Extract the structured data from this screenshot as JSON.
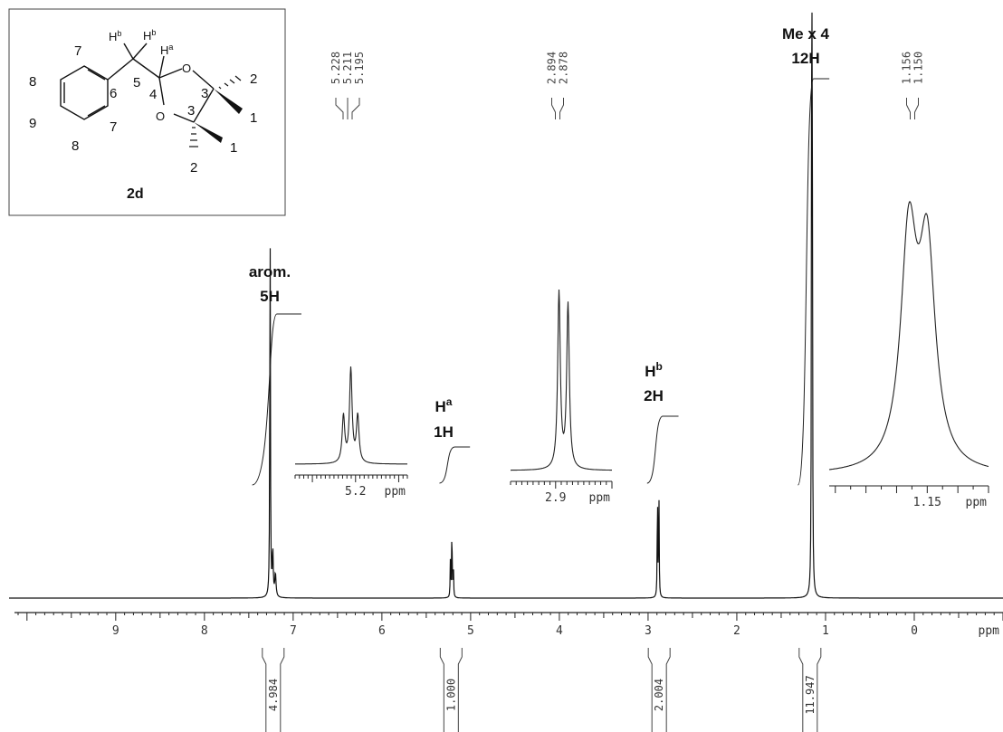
{
  "chart_data": {
    "type": "line",
    "title": "",
    "xlabel": "ppm",
    "x_axis_reversed": true,
    "xlim": [
      10.1,
      -1.0
    ],
    "grid": false,
    "x_ticks": [
      "9",
      "8",
      "7",
      "6",
      "5",
      "4",
      "3",
      "2",
      "1",
      "0"
    ],
    "peaks": [
      {
        "name": "arom.",
        "shift_ppm": 7.26,
        "intensity": 0.74
      },
      {
        "name": "Ha",
        "shift_ppm": 5.211,
        "intensity": 0.14,
        "multiplicity": "t",
        "lines_ppm": [
          5.228,
          5.211,
          5.195
        ]
      },
      {
        "name": "Hb",
        "shift_ppm": 2.886,
        "intensity": 0.21,
        "multiplicity": "d",
        "lines_ppm": [
          2.894,
          2.878
        ]
      },
      {
        "name": "Me x 4",
        "shift_ppm": 1.153,
        "intensity": 1.0,
        "multiplicity": "d",
        "lines_ppm": [
          1.156,
          1.15
        ]
      }
    ],
    "peak_labels": [
      {
        "id": "arom",
        "line1": "arom.",
        "line2": "5H"
      },
      {
        "id": "ha",
        "line1": "H",
        "sup": "a",
        "line2": "1H"
      },
      {
        "id": "hb",
        "line1": "H",
        "sup": "b",
        "line2": "2H"
      },
      {
        "id": "me",
        "line1": "Me x 4",
        "line2": "12H"
      }
    ],
    "peak_picks": [
      {
        "group": "ha",
        "values": [
          "5.228",
          "5.211",
          "5.195"
        ]
      },
      {
        "group": "hb",
        "values": [
          "2.894",
          "2.878"
        ]
      },
      {
        "group": "me",
        "values": [
          "1.156",
          "1.150"
        ]
      }
    ],
    "integrals": [
      {
        "group": "arom",
        "range_ppm": [
          7.05,
          7.4
        ],
        "value": "4.984"
      },
      {
        "group": "ha",
        "range_ppm": [
          5.15,
          5.29
        ],
        "value": "1.000"
      },
      {
        "group": "hb",
        "range_ppm": [
          2.8,
          2.95
        ],
        "value": "2.004"
      },
      {
        "group": "me",
        "range_ppm": [
          1.1,
          1.25
        ],
        "value": "11.947"
      }
    ],
    "insets": [
      {
        "group": "ha",
        "tick_label": "5.2",
        "unit": "ppm"
      },
      {
        "group": "hb",
        "tick_label": "2.9",
        "unit": "ppm"
      },
      {
        "group": "me",
        "tick_label": "1.15",
        "unit": "ppm"
      }
    ]
  },
  "structure": {
    "compound_label": "2d",
    "atom_labels": [
      "7",
      "8",
      "9",
      "8",
      "7",
      "6",
      "5",
      "4",
      "3",
      "3",
      "2",
      "1",
      "1",
      "2"
    ],
    "hb_label_1": "H",
    "hb_label_1_sup": "b",
    "hb_label_2": "H",
    "hb_label_2_sup": "b",
    "ha_label": "H",
    "ha_label_sup": "a",
    "oxygen": "O"
  }
}
